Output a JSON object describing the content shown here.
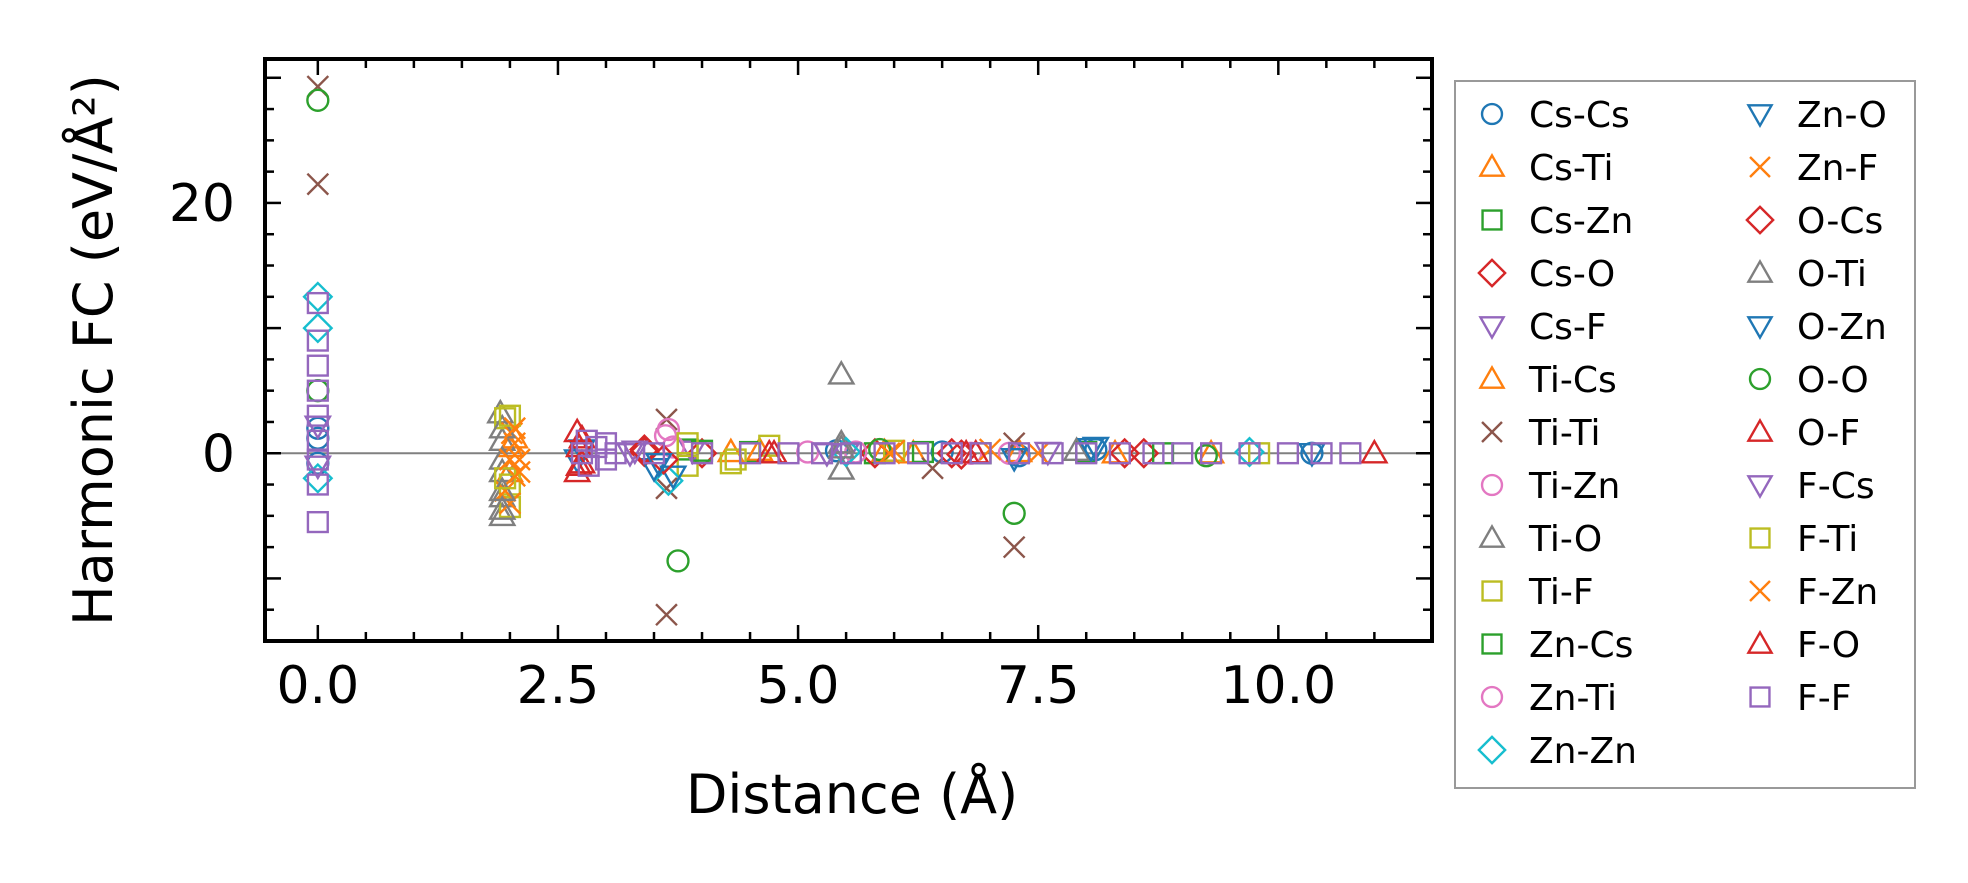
{
  "chart_data": {
    "type": "scatter",
    "xlabel": "Distance (Å)",
    "ylabel": "Harmonic FC (eV/Å²)",
    "xlim": [
      -0.55,
      11.6
    ],
    "ylim": [
      -15,
      31.5
    ],
    "x_ticks": [
      0.0,
      2.5,
      5.0,
      7.5,
      10.0
    ],
    "x_tick_labels": [
      "0.0",
      "2.5",
      "5.0",
      "7.5",
      "10.0"
    ],
    "y_ticks": [
      0,
      20
    ],
    "y_tick_labels": [
      "0",
      "20"
    ],
    "zero_line": true,
    "grid": false,
    "legend_position": "outside-right",
    "legend_columns": 2,
    "series": [
      {
        "name": "Cs-Cs",
        "marker": "circle",
        "color": "#1f77b4",
        "points": [
          [
            0,
            1.2
          ],
          [
            0,
            2.0
          ],
          [
            0,
            -0.8
          ],
          [
            5.4,
            0.2
          ],
          [
            6.5,
            0.1
          ],
          [
            7.3,
            -0.2
          ],
          [
            8.1,
            0.3
          ],
          [
            10.35,
            0.0
          ]
        ]
      },
      {
        "name": "Cs-Ti",
        "marker": "triangle-up",
        "color": "#ff7f0e",
        "points": [
          [
            2.0,
            -1.5
          ],
          [
            2.05,
            1.2
          ],
          [
            4.6,
            0.2
          ],
          [
            5.9,
            0.1
          ],
          [
            7.3,
            0.1
          ],
          [
            9.3,
            0.0
          ]
        ]
      },
      {
        "name": "Cs-Zn",
        "marker": "square",
        "color": "#2ca02c",
        "points": [
          [
            3.85,
            0.3
          ],
          [
            4.5,
            0.1
          ],
          [
            5.8,
            0.0
          ],
          [
            6.9,
            0.0
          ],
          [
            8.0,
            0.1
          ]
        ]
      },
      {
        "name": "Cs-O",
        "marker": "diamond",
        "color": "#d62728",
        "points": [
          [
            3.4,
            0.1
          ],
          [
            4.0,
            0.0
          ],
          [
            5.8,
            0.0
          ],
          [
            6.7,
            -0.1
          ],
          [
            8.6,
            0.0
          ]
        ]
      },
      {
        "name": "Cs-F",
        "marker": "triangle-down",
        "color": "#9467bd",
        "points": [
          [
            3.25,
            0.0
          ],
          [
            3.9,
            0.2
          ],
          [
            5.5,
            0.0
          ],
          [
            7.6,
            0.1
          ]
        ]
      },
      {
        "name": "Ti-Cs",
        "marker": "triangle-up",
        "color": "#ff7f0e",
        "points": [
          [
            2.0,
            0.5
          ],
          [
            4.3,
            0.1
          ],
          [
            6.2,
            0.0
          ],
          [
            8.3,
            0.0
          ]
        ]
      },
      {
        "name": "Ti-Ti",
        "marker": "x",
        "color": "#8c564b",
        "points": [
          [
            0,
            29.3
          ],
          [
            0,
            21.5
          ],
          [
            3.63,
            2.7
          ],
          [
            3.63,
            -2.8
          ],
          [
            3.63,
            -12.9
          ],
          [
            6.4,
            -1.2
          ],
          [
            7.25,
            0.8
          ],
          [
            7.25,
            -7.5
          ]
        ]
      },
      {
        "name": "Ti-Zn",
        "marker": "circle",
        "color": "#e377c2",
        "points": [
          [
            3.65,
            1.9
          ],
          [
            3.7,
            0.5
          ],
          [
            5.6,
            0.1
          ],
          [
            7.2,
            0.0
          ]
        ]
      },
      {
        "name": "Ti-O",
        "marker": "triangle-up",
        "color": "#7f7f7f",
        "points": [
          [
            1.9,
            3.2
          ],
          [
            1.92,
            1.0
          ],
          [
            1.92,
            -1.5
          ],
          [
            1.92,
            -3.5
          ],
          [
            1.92,
            -5.0
          ],
          [
            5.45,
            6.3
          ],
          [
            5.45,
            0.8
          ],
          [
            5.45,
            -1.3
          ],
          [
            7.9,
            0.2
          ]
        ]
      },
      {
        "name": "Ti-F",
        "marker": "square",
        "color": "#bcbd22",
        "points": [
          [
            1.95,
            2.8
          ],
          [
            2.0,
            -2.5
          ],
          [
            2.0,
            -4.3
          ],
          [
            3.85,
            -1.0
          ],
          [
            4.3,
            -0.8
          ],
          [
            4.7,
            0.6
          ],
          [
            6.0,
            0.2
          ]
        ]
      },
      {
        "name": "Zn-Cs",
        "marker": "square",
        "color": "#2ca02c",
        "points": [
          [
            4.0,
            0.2
          ],
          [
            6.3,
            0.1
          ],
          [
            8.8,
            0.0
          ]
        ]
      },
      {
        "name": "Zn-Ti",
        "marker": "circle",
        "color": "#e377c2",
        "points": [
          [
            3.62,
            1.4
          ],
          [
            5.1,
            0.1
          ],
          [
            6.8,
            0.0
          ]
        ]
      },
      {
        "name": "Zn-Zn",
        "marker": "diamond",
        "color": "#17becf",
        "points": [
          [
            0,
            12.5
          ],
          [
            0,
            10.0
          ],
          [
            0,
            -2.0
          ],
          [
            3.65,
            -2.2
          ],
          [
            5.5,
            0.1
          ],
          [
            9.7,
            0.1
          ]
        ]
      },
      {
        "name": "Zn-O",
        "marker": "triangle-down",
        "color": "#1f77b4",
        "points": [
          [
            2.7,
            -0.5
          ],
          [
            3.5,
            -1.2
          ],
          [
            3.7,
            -1.8
          ],
          [
            7.25,
            -0.4
          ],
          [
            8.1,
            0.5
          ],
          [
            10.35,
            0.0
          ]
        ]
      },
      {
        "name": "Zn-F",
        "marker": "x",
        "color": "#ff7f0e",
        "points": [
          [
            1.95,
            -3.0
          ],
          [
            2.0,
            -4.0
          ],
          [
            2.02,
            1.6
          ],
          [
            2.05,
            -1.8
          ],
          [
            2.05,
            0.8
          ],
          [
            2.1,
            -0.5
          ],
          [
            6.0,
            0.2
          ],
          [
            7.0,
            0.3
          ]
        ]
      },
      {
        "name": "O-Cs",
        "marker": "diamond",
        "color": "#d62728",
        "points": [
          [
            3.4,
            0.3
          ],
          [
            3.6,
            -0.5
          ],
          [
            6.6,
            0.0
          ],
          [
            8.4,
            0.0
          ]
        ]
      },
      {
        "name": "O-Ti",
        "marker": "triangle-up",
        "color": "#7f7f7f",
        "points": [
          [
            1.92,
            -0.5
          ],
          [
            1.92,
            2.0
          ],
          [
            1.92,
            -3.0
          ],
          [
            1.92,
            -4.5
          ],
          [
            5.45,
            0.4
          ]
        ]
      },
      {
        "name": "O-Zn",
        "marker": "triangle-down",
        "color": "#1f77b4",
        "points": [
          [
            2.75,
            0.3
          ],
          [
            3.55,
            -0.8
          ],
          [
            8.05,
            0.4
          ]
        ]
      },
      {
        "name": "O-O",
        "marker": "circle",
        "color": "#2ca02c",
        "points": [
          [
            0,
            28.2
          ],
          [
            0,
            5.0
          ],
          [
            3.75,
            -8.6
          ],
          [
            5.85,
            0.3
          ],
          [
            7.25,
            -4.8
          ],
          [
            9.25,
            -0.2
          ]
        ]
      },
      {
        "name": "O-F",
        "marker": "triangle-up",
        "color": "#d62728",
        "points": [
          [
            2.7,
            1.7
          ],
          [
            2.7,
            -1.5
          ],
          [
            2.72,
            0.5
          ],
          [
            2.75,
            -0.8
          ],
          [
            4.7,
            0.0
          ],
          [
            6.75,
            0.0
          ],
          [
            11.0,
            0.0
          ]
        ]
      },
      {
        "name": "F-Cs",
        "marker": "triangle-down",
        "color": "#9467bd",
        "points": [
          [
            0,
            -1.0
          ],
          [
            0,
            2.2
          ],
          [
            3.3,
            0.2
          ],
          [
            5.3,
            0.0
          ]
        ]
      },
      {
        "name": "F-Ti",
        "marker": "square",
        "color": "#bcbd22",
        "points": [
          [
            1.95,
            -2.0
          ],
          [
            2.0,
            3.0
          ],
          [
            3.85,
            0.8
          ],
          [
            4.35,
            -0.5
          ],
          [
            9.8,
            0.0
          ]
        ]
      },
      {
        "name": "F-Zn",
        "marker": "x",
        "color": "#ff7f0e",
        "points": [
          [
            2.0,
            -0.5
          ],
          [
            2.05,
            2.0
          ],
          [
            2.1,
            -1.5
          ],
          [
            5.95,
            0.0
          ],
          [
            7.5,
            0.0
          ]
        ]
      },
      {
        "name": "F-O",
        "marker": "triangle-up",
        "color": "#d62728",
        "points": [
          [
            2.72,
            -1.0
          ],
          [
            2.75,
            1.2
          ],
          [
            4.75,
            0.0
          ],
          [
            6.85,
            0.0
          ]
        ]
      },
      {
        "name": "F-F",
        "marker": "square",
        "color": "#9467bd",
        "points": [
          [
            0,
            -5.5
          ],
          [
            0,
            -2.5
          ],
          [
            0,
            -0.5
          ],
          [
            0,
            1.0
          ],
          [
            0,
            3.0
          ],
          [
            0,
            5.0
          ],
          [
            0,
            7.0
          ],
          [
            0,
            9.0
          ],
          [
            0,
            12.0
          ],
          [
            2.75,
            0.0
          ],
          [
            2.8,
            1.0
          ],
          [
            2.82,
            -1.0
          ],
          [
            2.9,
            0.5
          ],
          [
            3.0,
            -0.5
          ],
          [
            3.0,
            0.8
          ],
          [
            3.1,
            0.0
          ],
          [
            3.5,
            0.0
          ],
          [
            4.0,
            0.0
          ],
          [
            4.5,
            0.0
          ],
          [
            4.9,
            0.0
          ],
          [
            5.25,
            0.0
          ],
          [
            5.55,
            0.0
          ],
          [
            5.9,
            0.0
          ],
          [
            6.25,
            0.0
          ],
          [
            6.6,
            0.0
          ],
          [
            6.9,
            0.0
          ],
          [
            7.3,
            0.0
          ],
          [
            7.65,
            0.0
          ],
          [
            8.0,
            0.0
          ],
          [
            8.35,
            0.0
          ],
          [
            8.7,
            0.0
          ],
          [
            9.0,
            0.0
          ],
          [
            9.3,
            0.0
          ],
          [
            9.7,
            0.0
          ],
          [
            10.1,
            0.0
          ],
          [
            10.45,
            0.0
          ],
          [
            10.75,
            0.0
          ]
        ]
      }
    ]
  }
}
